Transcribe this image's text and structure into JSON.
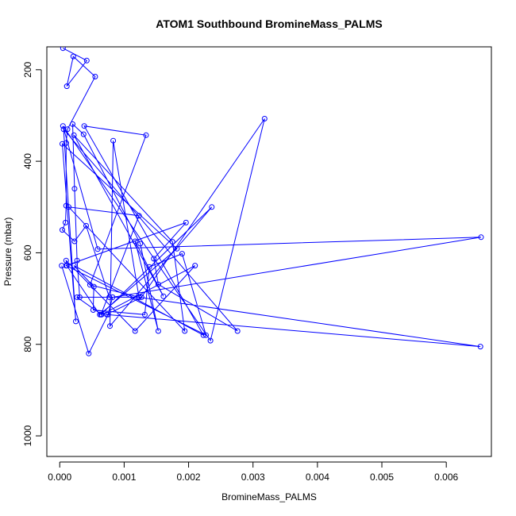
{
  "chart_data": {
    "type": "line",
    "title": "ATOM1 Southbound BromineMass_PALMS",
    "xlabel": "BromineMass_PALMS",
    "ylabel": "Pressure (mbar)",
    "xlim": [
      -0.0002,
      0.0067
    ],
    "ylim": [
      1045,
      150
    ],
    "y_reversed": true,
    "x_ticks": [
      0.0,
      0.001,
      0.002,
      0.003,
      0.004,
      0.005,
      0.006
    ],
    "x_tick_labels": [
      "0.000",
      "0.001",
      "0.002",
      "0.003",
      "0.004",
      "0.005",
      "0.006"
    ],
    "y_ticks": [
      200,
      400,
      600,
      800,
      1000
    ],
    "y_tick_labels": [
      "200",
      "400",
      "600",
      "800",
      "1000"
    ],
    "grid": false,
    "legend": "none",
    "color": "#0000ff",
    "series": [
      {
        "x": [
          5e-05,
          0.00042,
          0.00011,
          0.00021,
          0.00055,
          0.00012,
          0.0001,
          0.0001,
          9e-05,
          4e-05,
          0.00023,
          0.00041,
          0.00077,
          0.00031,
          0.00027,
          0.00023,
          0.0002,
          0.00037,
          0.00125,
          0.00153,
          0.00117,
          0.00161,
          0.00022,
          0.00175,
          0.00194,
          0.00014,
          0.00123,
          0.00064,
          0.00236,
          0.00078,
          0.00083,
          0.00123,
          0.00047,
          0.00134,
          0.00038,
          0.00223,
          0.00022,
          0.00053,
          0.00052,
          0.00132,
          0.00139,
          0.0019,
          0.00227,
          0.0001,
          0.00196,
          0.00146,
          0.00153,
          0.00276,
          6e-05,
          0.00025,
          4e-05,
          0.00182,
          0.00062,
          0.00011,
          0.0001,
          0.00117,
          0.0021,
          0.00065,
          0.00027,
          0.00123,
          0.00653,
          0.00073,
          0.00127,
          0.00318,
          0.00234,
          5e-05,
          0.00059,
          0.00654,
          0.00082,
          0.00075,
          0.00045,
          3e-05
        ],
        "y": [
          153,
          180,
          236,
          171,
          215,
          330,
          360,
          497,
          534,
          550,
          575,
          541,
          697,
          697,
          617,
          460,
          319,
          341,
          580,
          771,
          575,
          695,
          343,
          576,
          771,
          500,
          519,
          735,
          500,
          760,
          355,
          697,
          670,
          343,
          323,
          780,
          628,
          674,
          725,
          735,
          631,
          602,
          780,
          628,
          534,
          613,
          669,
          771,
          330,
          750,
          362,
          591,
          735,
          628,
          617,
          771,
          628,
          735,
          697,
          697,
          805,
          735,
          697,
          307,
          792,
          323,
          592,
          566,
          697,
          735,
          820,
          628
        ]
      }
    ]
  }
}
